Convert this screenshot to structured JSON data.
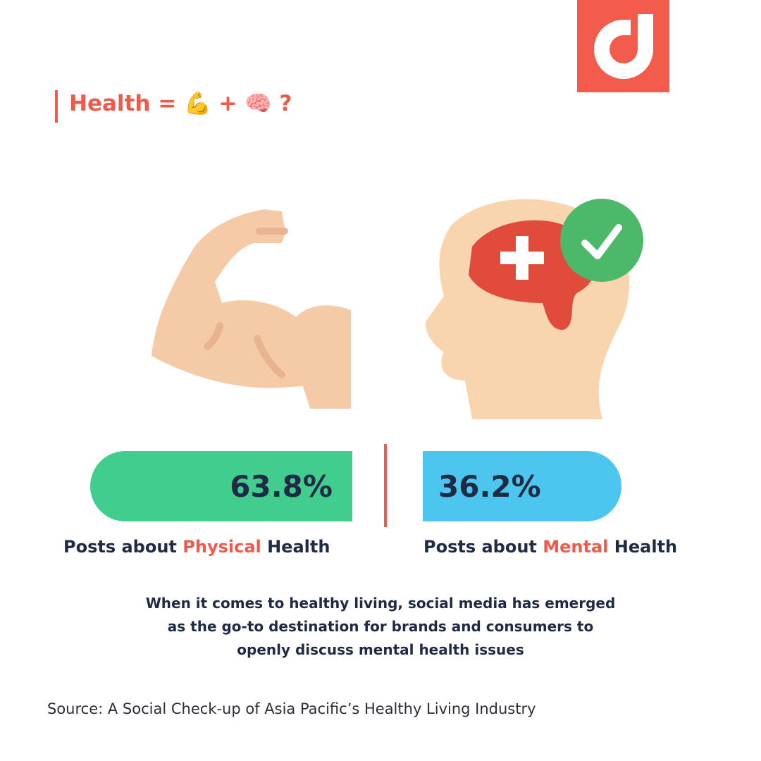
{
  "header": {
    "title": "Health = 💪 + 🧠 ?"
  },
  "stats": [
    {
      "value": "63.8%",
      "label_parts": [
        "Posts about ",
        "Physical",
        " Health"
      ]
    },
    {
      "value": "36.2%",
      "label_parts": [
        "Posts about ",
        "Mental",
        " Health"
      ]
    }
  ],
  "body": "When it comes to healthy living, social media has emerged as the go-to destination for brands and consumers to openly discuss mental health issues",
  "source": "Source: A Social Check-up of Asia Pacific’s Healthy Living Industry"
}
